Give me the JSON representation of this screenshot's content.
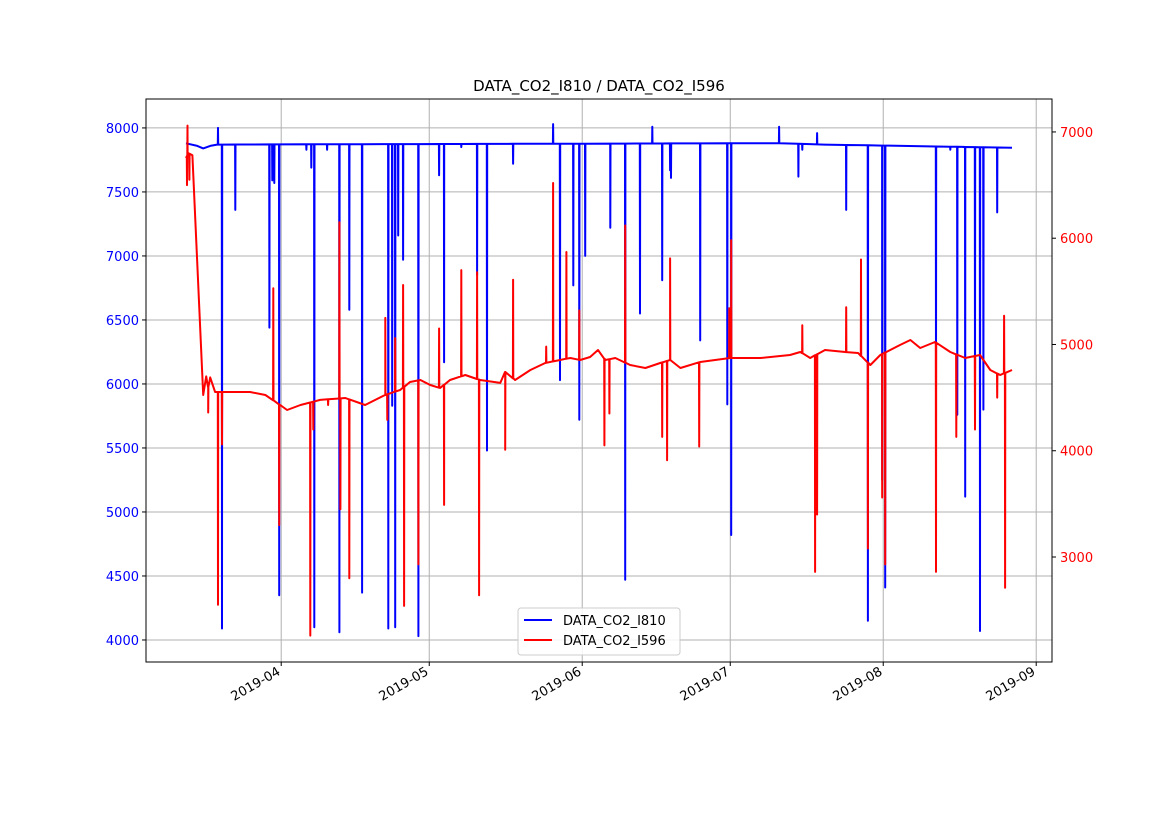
{
  "chart_data": {
    "type": "line",
    "title": "DATA_CO2_I810 / DATA_CO2_I596",
    "x_unit": "days since 2019-04-01",
    "xlim": [
      -27.4,
      156.2
    ],
    "x_ticks": [
      {
        "day": 0,
        "label": "2019-04"
      },
      {
        "day": 30,
        "label": "2019-05"
      },
      {
        "day": 61,
        "label": "2019-06"
      },
      {
        "day": 91,
        "label": "2019-07"
      },
      {
        "day": 122,
        "label": "2019-08"
      },
      {
        "day": 153,
        "label": "2019-09"
      }
    ],
    "left_axis": {
      "ylim": [
        3828,
        8226
      ],
      "ticks": [
        "4000",
        "4500",
        "5000",
        "5500",
        "6000",
        "6500",
        "7000",
        "7500",
        "8000"
      ],
      "color": "#0000ff"
    },
    "right_axis": {
      "ylim": [
        2012,
        7310
      ],
      "ticks": [
        "3000",
        "4000",
        "5000",
        "6000",
        "7000"
      ],
      "color": "#ff0000"
    },
    "grid": true,
    "legend": {
      "placement": "lower-center",
      "entries": [
        "DATA_CO2_I810",
        "DATA_CO2_I596"
      ]
    },
    "series": [
      {
        "name": "DATA_CO2_I810",
        "axis": "left",
        "color": "#0000ff",
        "baseline": [
          [
            -19.3,
            7880
          ],
          [
            -17,
            7860
          ],
          [
            -15.8,
            7840
          ],
          [
            -14.4,
            7860
          ],
          [
            -13,
            7870
          ],
          [
            91,
            7880
          ],
          [
            101,
            7880
          ],
          [
            110,
            7870
          ],
          [
            148.1,
            7845
          ]
        ],
        "spikes": [
          [
            -12.8,
            8000
          ],
          [
            -12.0,
            4090
          ],
          [
            -9.3,
            7360
          ],
          [
            -2.4,
            6440
          ],
          [
            -1.8,
            7590
          ],
          [
            -1.4,
            7570
          ],
          [
            -0.4,
            4350
          ],
          [
            5.1,
            7830
          ],
          [
            6.1,
            7690
          ],
          [
            6.7,
            4100
          ],
          [
            9.3,
            7830
          ],
          [
            11.8,
            4060
          ],
          [
            13.8,
            6580
          ],
          [
            16.4,
            4370
          ],
          [
            21.7,
            4090
          ],
          [
            22.5,
            5830
          ],
          [
            23.1,
            4100
          ],
          [
            23.7,
            7160
          ],
          [
            24.7,
            6970
          ],
          [
            27.8,
            4030
          ],
          [
            32.0,
            7630
          ],
          [
            33.0,
            6170
          ],
          [
            36.5,
            7850
          ],
          [
            39.7,
            6850
          ],
          [
            41.7,
            5480
          ],
          [
            47.0,
            7720
          ],
          [
            55.1,
            8030
          ],
          [
            56.5,
            6030
          ],
          [
            59.2,
            6770
          ],
          [
            60.4,
            5720
          ],
          [
            61.6,
            7000
          ],
          [
            66.7,
            7220
          ],
          [
            69.7,
            4470
          ],
          [
            72.7,
            6550
          ],
          [
            75.2,
            8010
          ],
          [
            77.2,
            6810
          ],
          [
            78.8,
            7670
          ],
          [
            79.0,
            7610
          ],
          [
            84.9,
            6340
          ],
          [
            90.4,
            5840
          ],
          [
            91.2,
            4820
          ],
          [
            100.9,
            8010
          ],
          [
            104.8,
            7620
          ],
          [
            105.6,
            7830
          ],
          [
            108.6,
            7960
          ],
          [
            114.5,
            7360
          ],
          [
            118.9,
            4150
          ],
          [
            121.8,
            5250
          ],
          [
            122.4,
            4410
          ],
          [
            132.7,
            6000
          ],
          [
            135.6,
            7830
          ],
          [
            137.0,
            5760
          ],
          [
            138.2,
            7850
          ],
          [
            138.6,
            5120
          ],
          [
            140.6,
            5880
          ],
          [
            141.6,
            4070
          ],
          [
            142.3,
            5800
          ],
          [
            145.1,
            7340
          ]
        ]
      },
      {
        "name": "DATA_CO2_I596",
        "axis": "right",
        "color": "#ff0000",
        "baseline": [
          [
            -19.3,
            6755
          ],
          [
            -18.8,
            6800
          ],
          [
            -18.0,
            6780
          ],
          [
            -15.8,
            4525
          ],
          [
            -15.2,
            4700
          ],
          [
            -14.8,
            4600
          ],
          [
            -14.4,
            4690
          ],
          [
            -13.4,
            4553
          ],
          [
            -6.3,
            4553
          ],
          [
            -3.2,
            4525
          ],
          [
            -0.2,
            4430
          ],
          [
            1.2,
            4383
          ],
          [
            3.9,
            4430
          ],
          [
            7.9,
            4478
          ],
          [
            13.0,
            4496
          ],
          [
            17.0,
            4430
          ],
          [
            21.1,
            4525
          ],
          [
            24.1,
            4572
          ],
          [
            26.1,
            4647
          ],
          [
            28.2,
            4666
          ],
          [
            30.2,
            4619
          ],
          [
            32.2,
            4590
          ],
          [
            34.2,
            4666
          ],
          [
            37.3,
            4713
          ],
          [
            40.3,
            4666
          ],
          [
            44.4,
            4638
          ],
          [
            45.4,
            4741
          ],
          [
            47.4,
            4666
          ],
          [
            50.5,
            4760
          ],
          [
            53.5,
            4826
          ],
          [
            56.5,
            4854
          ],
          [
            58.6,
            4873
          ],
          [
            60.6,
            4854
          ],
          [
            62.6,
            4882
          ],
          [
            64.2,
            4948
          ],
          [
            65.7,
            4854
          ],
          [
            67.7,
            4873
          ],
          [
            70.7,
            4807
          ],
          [
            73.8,
            4779
          ],
          [
            76.8,
            4826
          ],
          [
            78.8,
            4854
          ],
          [
            80.9,
            4779
          ],
          [
            84.9,
            4835
          ],
          [
            91.0,
            4873
          ],
          [
            97.1,
            4873
          ],
          [
            103.1,
            4901
          ],
          [
            105.2,
            4929
          ],
          [
            107.2,
            4873
          ],
          [
            110.2,
            4948
          ],
          [
            114.3,
            4929
          ],
          [
            116.9,
            4920
          ],
          [
            119.4,
            4807
          ],
          [
            121.4,
            4901
          ],
          [
            125.4,
            4995
          ],
          [
            127.5,
            5042
          ],
          [
            129.5,
            4967
          ],
          [
            132.5,
            5023
          ],
          [
            135.6,
            4929
          ],
          [
            138.6,
            4873
          ],
          [
            141.6,
            4901
          ],
          [
            143.7,
            4760
          ],
          [
            145.7,
            4713
          ],
          [
            148.1,
            4760
          ]
        ],
        "spikes": [
          [
            -19.1,
            6500
          ],
          [
            -19.0,
            7060
          ],
          [
            -18.6,
            6550
          ],
          [
            -14.8,
            4360
          ],
          [
            -12.8,
            2550
          ],
          [
            -12.0,
            4060
          ],
          [
            -1.6,
            5530
          ],
          [
            -0.4,
            3300
          ],
          [
            5.9,
            2260
          ],
          [
            6.5,
            4200
          ],
          [
            9.5,
            4430
          ],
          [
            11.8,
            6150
          ],
          [
            12.0,
            3450
          ],
          [
            13.8,
            2800
          ],
          [
            21.1,
            5250
          ],
          [
            21.5,
            4290
          ],
          [
            23.1,
            5060
          ],
          [
            24.7,
            5560
          ],
          [
            24.9,
            2540
          ],
          [
            27.8,
            2930
          ],
          [
            32.0,
            5150
          ],
          [
            33.0,
            3490
          ],
          [
            36.5,
            5700
          ],
          [
            39.7,
            5680
          ],
          [
            40.1,
            2640
          ],
          [
            45.4,
            4010
          ],
          [
            47.0,
            5610
          ],
          [
            53.7,
            4980
          ],
          [
            55.1,
            6520
          ],
          [
            57.8,
            5870
          ],
          [
            60.4,
            5320
          ],
          [
            65.5,
            4050
          ],
          [
            66.5,
            4350
          ],
          [
            69.7,
            6120
          ],
          [
            77.2,
            4130
          ],
          [
            78.2,
            3910
          ],
          [
            78.8,
            5810
          ],
          [
            84.7,
            4040
          ],
          [
            90.8,
            5340
          ],
          [
            91.2,
            5980
          ],
          [
            105.6,
            5180
          ],
          [
            108.2,
            2860
          ],
          [
            108.6,
            3400
          ],
          [
            114.5,
            5350
          ],
          [
            117.5,
            5800
          ],
          [
            118.9,
            3080
          ],
          [
            121.8,
            3560
          ],
          [
            122.4,
            2930
          ],
          [
            132.7,
            2860
          ],
          [
            136.8,
            4130
          ],
          [
            140.6,
            4200
          ],
          [
            145.1,
            4500
          ],
          [
            146.5,
            5270
          ],
          [
            146.7,
            2710
          ]
        ]
      }
    ]
  }
}
